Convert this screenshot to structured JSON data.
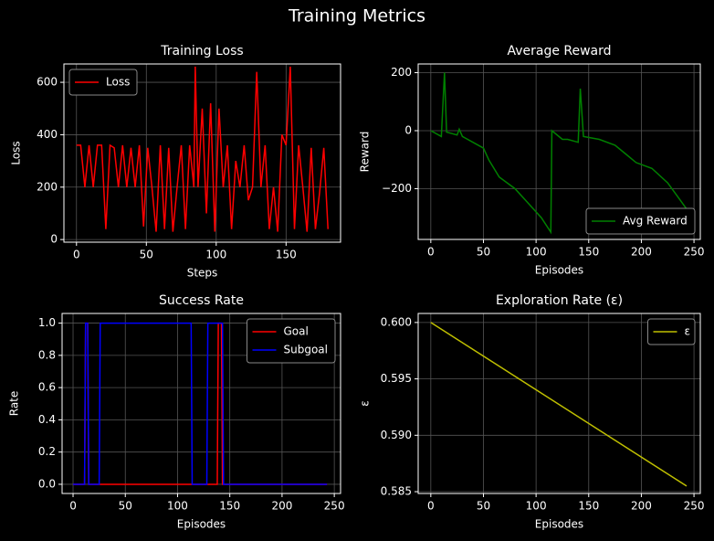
{
  "title": "Training Metrics",
  "chart_data": [
    {
      "type": "line",
      "title": "Training Loss",
      "xlabel": "Steps",
      "ylabel": "Loss",
      "x": [
        0,
        3,
        6,
        9,
        12,
        15,
        18,
        21,
        24,
        27,
        30,
        33,
        36,
        39,
        42,
        45,
        48,
        51,
        54,
        57,
        60,
        63,
        66,
        69,
        72,
        75,
        78,
        81,
        84,
        85,
        87,
        90,
        93,
        96,
        99,
        102,
        105,
        108,
        111,
        114,
        117,
        120,
        123,
        126,
        129,
        132,
        135,
        138,
        141,
        144,
        147,
        150,
        153,
        156,
        159,
        162,
        165,
        168,
        171,
        174,
        177,
        180
      ],
      "series": [
        {
          "name": "Loss",
          "color": "#ff0000",
          "values": [
            360,
            360,
            200,
            360,
            200,
            360,
            360,
            40,
            360,
            350,
            200,
            360,
            200,
            350,
            200,
            360,
            50,
            350,
            200,
            30,
            360,
            40,
            350,
            30,
            200,
            360,
            40,
            360,
            200,
            660,
            200,
            500,
            100,
            520,
            30,
            500,
            200,
            360,
            40,
            300,
            200,
            360,
            150,
            200,
            640,
            200,
            360,
            40,
            200,
            30,
            400,
            360,
            660,
            40,
            360,
            200,
            30,
            350,
            40,
            180,
            350,
            40
          ]
        }
      ],
      "xlim": [
        -9,
        189
      ],
      "ylim": [
        -10,
        670
      ],
      "xticks": [
        0,
        50,
        100,
        150
      ],
      "yticks": [
        0,
        200,
        400,
        600
      ],
      "grid": true,
      "legend": "upper-left"
    },
    {
      "type": "line",
      "title": "Average Reward",
      "xlabel": "Episodes",
      "ylabel": "Reward",
      "x": [
        0,
        10,
        13,
        15,
        25,
        27,
        30,
        40,
        50,
        55,
        65,
        80,
        95,
        105,
        114,
        115,
        125,
        130,
        140,
        142,
        145,
        160,
        175,
        185,
        195,
        210,
        225,
        235,
        243
      ],
      "series": [
        {
          "name": "Avg Reward",
          "color": "#008000",
          "values": [
            0,
            -20,
            200,
            -5,
            -15,
            5,
            -20,
            -40,
            -60,
            -100,
            -160,
            -200,
            -260,
            -300,
            -350,
            0,
            -30,
            -30,
            -40,
            145,
            -20,
            -30,
            -50,
            -80,
            -110,
            -130,
            -180,
            -230,
            -270
          ]
        }
      ],
      "xlim": [
        -12,
        256
      ],
      "ylim": [
        -375,
        230
      ],
      "xticks": [
        0,
        50,
        100,
        150,
        200,
        250
      ],
      "yticks": [
        {
          "value": -200,
          "label": "−200"
        },
        0,
        200
      ],
      "grid": true,
      "legend": "lower-right"
    },
    {
      "type": "line",
      "title": "Success Rate",
      "xlabel": "Episodes",
      "ylabel": "Rate",
      "series": [
        {
          "name": "Goal",
          "color": "#ff0000",
          "x": [
            0,
            11,
            12,
            14,
            15,
            138,
            139,
            142,
            143,
            243
          ],
          "values": [
            0,
            0,
            1,
            1,
            0,
            0,
            1,
            1,
            0,
            0
          ]
        },
        {
          "name": "Subgoal",
          "color": "#0000ff",
          "x": [
            0,
            11,
            12,
            14,
            15,
            25,
            26,
            113,
            114,
            128,
            129,
            143,
            144,
            243
          ],
          "values": [
            0,
            0,
            1,
            1,
            0,
            0,
            1,
            1,
            0,
            0,
            1,
            1,
            0,
            0
          ]
        }
      ],
      "xlim": [
        -10.5,
        256
      ],
      "ylim": [
        -0.057,
        1.06
      ],
      "xticks": [
        0,
        50,
        100,
        150,
        200,
        250
      ],
      "yticks": [
        {
          "value": 0,
          "label": "0.0"
        },
        0.2,
        0.4,
        0.6,
        0.8,
        {
          "value": 1,
          "label": "1.0"
        }
      ],
      "grid": true,
      "legend": "upper-right"
    },
    {
      "type": "line",
      "title": "Exploration Rate (ε)",
      "xlabel": "Episodes",
      "ylabel": "ε",
      "x": [
        0,
        243
      ],
      "series": [
        {
          "name": "ε",
          "color": "#bfbf00",
          "values": [
            0.6,
            0.5855
          ]
        }
      ],
      "xlim": [
        -12,
        256
      ],
      "ylim": [
        0.58484,
        0.6008
      ],
      "xticks": [
        0,
        50,
        100,
        150,
        200,
        250
      ],
      "yticks": [
        {
          "value": 0.585,
          "label": "0.585"
        },
        {
          "value": 0.59,
          "label": "0.590"
        },
        {
          "value": 0.595,
          "label": "0.595"
        },
        {
          "value": 0.6,
          "label": "0.600"
        }
      ],
      "grid": true,
      "legend": "upper-right"
    }
  ]
}
